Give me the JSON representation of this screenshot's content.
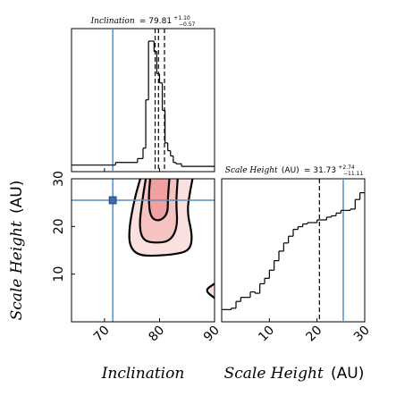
{
  "colors": {
    "truth_line": "#5b8fbf",
    "contour_fill_outer": "#fbe0e0",
    "contour_fill_mid": "#f6c2c2",
    "contour_fill_inner": "#f0a0a0",
    "hist_line": "#000000",
    "truth_marker": "#3a6ea5"
  },
  "chart_data": [
    {
      "type": "histogram",
      "panel": "top-left",
      "title_param": "Inclination",
      "title_value": "= 79.81",
      "title_sup": "+1.10",
      "title_sub": "−0.57",
      "x_range": [
        64,
        90
      ],
      "bin_edges": [
        64,
        72,
        76,
        77,
        77.5,
        78,
        78.5,
        79,
        79.5,
        80,
        80.5,
        81,
        81.5,
        82,
        82.5,
        83,
        84,
        90
      ],
      "counts": [
        0.05,
        0.07,
        0.1,
        0.18,
        0.55,
        1.0,
        1.0,
        0.92,
        0.75,
        0.68,
        0.47,
        0.22,
        0.16,
        0.12,
        0.07,
        0.06,
        0.04
      ],
      "quantile_lines": [
        79.2,
        79.81,
        80.9
      ],
      "truth_value": 71.5
    },
    {
      "type": "contour",
      "panel": "bottom-left",
      "x_range": [
        64,
        90
      ],
      "y_range": [
        0,
        30
      ],
      "x_ticks": [
        "70",
        "80",
        "90"
      ],
      "y_ticks": [
        "10",
        "20",
        "30"
      ],
      "truth_point": [
        71.5,
        25.5
      ],
      "contours": [
        {
          "level": "outer",
          "points": [
            [
              76.5,
              30
            ],
            [
              75.5,
              26
            ],
            [
              74.5,
              20
            ],
            [
              74.5,
              16
            ],
            [
              76,
              14
            ],
            [
              79,
              13.8
            ],
            [
              83,
              14.2
            ],
            [
              85.5,
              15
            ],
            [
              86,
              18
            ],
            [
              85,
              23
            ],
            [
              85.5,
              27
            ],
            [
              86,
              30
            ]
          ]
        },
        {
          "level": "mid",
          "points": [
            [
              77.5,
              30
            ],
            [
              76.8,
              25
            ],
            [
              76.3,
              20
            ],
            [
              77,
              17
            ],
            [
              79.5,
              16.5
            ],
            [
              82,
              17
            ],
            [
              83.3,
              20
            ],
            [
              83,
              25
            ],
            [
              83.3,
              30
            ]
          ]
        },
        {
          "level": "inner",
          "points": [
            [
              78.3,
              30
            ],
            [
              78,
              26
            ],
            [
              78.3,
              22
            ],
            [
              79.8,
              21
            ],
            [
              81.5,
              22.5
            ],
            [
              81.5,
              26
            ],
            [
              81.8,
              30
            ]
          ]
        },
        {
          "level": "islet",
          "points": [
            [
              90,
              8
            ],
            [
              88.2,
              6.6
            ],
            [
              90,
              5
            ]
          ]
        }
      ]
    },
    {
      "type": "histogram",
      "panel": "bottom-right",
      "title_param": "Scale Height",
      "title_unit": "(AU)",
      "title_value": "= 31.73",
      "title_sup": "+2.74",
      "title_sub": "−11.11",
      "x_range": [
        0,
        30
      ],
      "x_ticks": [
        "10",
        "20",
        "30"
      ],
      "bin_edges": [
        0,
        2,
        3,
        4,
        5,
        6,
        7,
        8,
        9,
        10,
        11,
        12,
        13,
        14,
        15,
        16,
        17,
        18,
        19,
        20,
        21,
        22,
        23,
        24,
        25,
        26,
        27,
        28,
        29,
        30
      ],
      "counts": [
        0.09,
        0.1,
        0.15,
        0.18,
        0.18,
        0.22,
        0.21,
        0.28,
        0.32,
        0.38,
        0.45,
        0.52,
        0.58,
        0.63,
        0.68,
        0.7,
        0.72,
        0.73,
        0.73,
        0.75,
        0.75,
        0.77,
        0.78,
        0.8,
        0.82,
        0.82,
        0.83,
        0.9,
        0.95
      ],
      "quantile_lines": [
        20.5
      ],
      "truth_value": 25.5
    }
  ],
  "axes": {
    "x_left_title": "Inclination",
    "x_right_title_italic": "Scale Height",
    "x_right_title_unit": "(AU)",
    "y_title_italic": "Scale Height",
    "y_title_unit": "(AU)"
  }
}
